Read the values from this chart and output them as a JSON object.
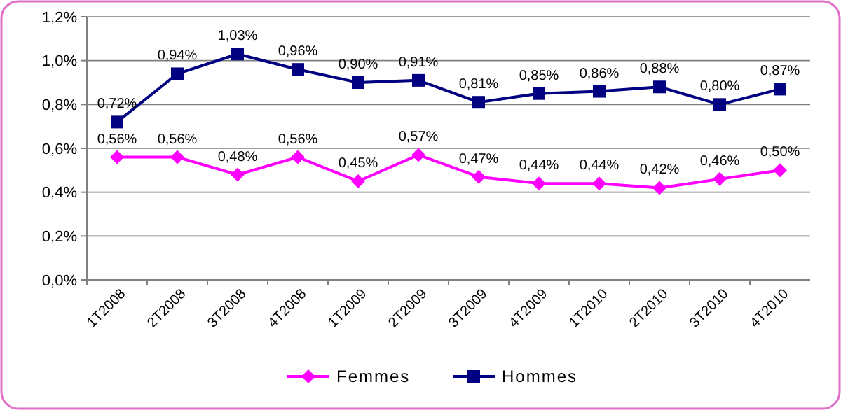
{
  "chart_data": {
    "type": "line",
    "categories": [
      "1T2008",
      "2T2008",
      "3T2008",
      "4T2008",
      "1T2009",
      "2T2009",
      "3T2009",
      "4T2009",
      "1T2010",
      "2T2010",
      "3T2010",
      "4T2010"
    ],
    "series": [
      {
        "name": "Femmes",
        "color": "#ff00ff",
        "marker": "diamond",
        "values": [
          0.56,
          0.56,
          0.48,
          0.56,
          0.45,
          0.57,
          0.47,
          0.44,
          0.44,
          0.42,
          0.46,
          0.5
        ],
        "value_labels": [
          "0,56%",
          "0,56%",
          "0,48%",
          "0,56%",
          "0,45%",
          "0,57%",
          "0,47%",
          "0,44%",
          "0,44%",
          "0,42%",
          "0,46%",
          "0,50%"
        ]
      },
      {
        "name": "Hommes",
        "color": "#000080",
        "marker": "square",
        "values": [
          0.72,
          0.94,
          1.03,
          0.96,
          0.9,
          0.91,
          0.81,
          0.85,
          0.86,
          0.88,
          0.8,
          0.87
        ],
        "value_labels": [
          "0,72%",
          "0,94%",
          "1,03%",
          "0,96%",
          "0,90%",
          "0,91%",
          "0,81%",
          "0,85%",
          "0,86%",
          "0,88%",
          "0,80%",
          "0,87%"
        ]
      }
    ],
    "ylim": [
      0,
      1.2
    ],
    "yticks": [
      {
        "value": 0,
        "label": "0,0%"
      },
      {
        "value": 0.2,
        "label": "0,2%"
      },
      {
        "value": 0.4,
        "label": "0,4%"
      },
      {
        "value": 0.6,
        "label": "0,6%"
      },
      {
        "value": 0.8,
        "label": "0,8%"
      },
      {
        "value": 1.0,
        "label": "1,0%"
      },
      {
        "value": 1.2,
        "label": "1,2%"
      }
    ],
    "grid": "y",
    "legend": "bottom",
    "line_style": "solid"
  }
}
